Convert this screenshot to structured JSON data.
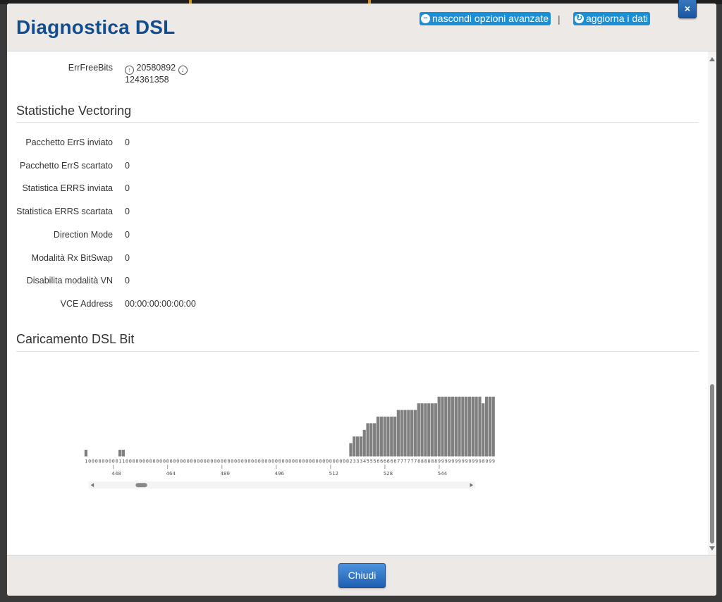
{
  "dialog": {
    "title": "Diagnostica DSL",
    "hide_advanced_label": "nascondi opzioni avanzate",
    "separator": "|",
    "refresh_label": "aggiorna i dati",
    "close_symbol": "×",
    "footer_button": "Chiudi"
  },
  "err_free_bits": {
    "label": "ErrFreeBits",
    "upstream": "20580892",
    "downstream": "124361358"
  },
  "vectoring": {
    "title": "Statistiche Vectoring",
    "rows": [
      {
        "label": "Pacchetto ErrS inviato",
        "value": "0"
      },
      {
        "label": "Pacchetto ErrS scartato",
        "value": "0"
      },
      {
        "label": "Statistica ERRS inviata",
        "value": "0"
      },
      {
        "label": "Statistica ERRS scartata",
        "value": "0"
      },
      {
        "label": "Direction Mode",
        "value": "0"
      },
      {
        "label": "Modalità Rx BitSwap",
        "value": "0"
      },
      {
        "label": "Disabilita modalità VN",
        "value": "0"
      },
      {
        "label": "VCE Address",
        "value": "00:00:00:00:00:00"
      }
    ]
  },
  "bit_loading": {
    "title": "Caricamento DSL Bit"
  },
  "icons": {
    "hide_icon": "minus-circle-icon",
    "refresh_icon": "refresh-icon",
    "upload_icon": "arrow-up-circle-icon",
    "download_icon": "arrow-down-circle-icon"
  },
  "colors": {
    "title": "#124d8f",
    "link_bg": "#1a8fd4",
    "bar": "#7f7f7f",
    "button": "#2a6fc0"
  },
  "chart_data": {
    "type": "bar",
    "x_start": 440,
    "x_ticks": [
      448,
      464,
      480,
      496,
      512,
      528,
      544
    ],
    "values": [
      1,
      0,
      0,
      0,
      0,
      0,
      0,
      0,
      0,
      0,
      1,
      1,
      0,
      0,
      0,
      0,
      0,
      0,
      0,
      0,
      0,
      0,
      0,
      0,
      0,
      0,
      0,
      0,
      0,
      0,
      0,
      0,
      0,
      0,
      0,
      0,
      0,
      0,
      0,
      0,
      0,
      0,
      0,
      0,
      0,
      0,
      0,
      0,
      0,
      0,
      0,
      0,
      0,
      0,
      0,
      0,
      0,
      0,
      0,
      0,
      0,
      0,
      0,
      0,
      0,
      0,
      0,
      0,
      0,
      0,
      0,
      0,
      0,
      0,
      0,
      0,
      0,
      0,
      2,
      3,
      3,
      3,
      4,
      5,
      5,
      5,
      6,
      6,
      6,
      6,
      6,
      6,
      7,
      7,
      7,
      7,
      7,
      7,
      8,
      8,
      8,
      8,
      8,
      8,
      9,
      9,
      9,
      9,
      9,
      9,
      9,
      9,
      9,
      9,
      9,
      9,
      9,
      8,
      9,
      9,
      9
    ],
    "ylim": [
      0,
      9
    ]
  }
}
